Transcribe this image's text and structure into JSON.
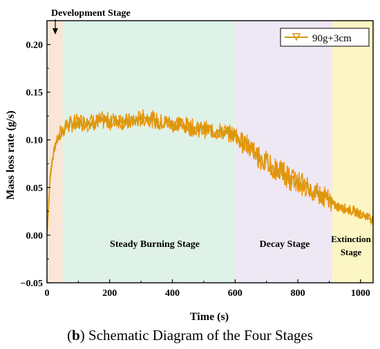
{
  "caption": {
    "prefix_open": "(",
    "letter": "b",
    "prefix_close": ")",
    "text": " Schematic Diagram of the Four Stages"
  },
  "colors": {
    "development": "#fbe5d6",
    "steady": "#dff2e8",
    "decay": "#eee8f4",
    "extinction": "#fbf6c3",
    "series": "#d9980e",
    "series_bright": "#f39200"
  },
  "chart_data": {
    "type": "line",
    "title": "",
    "xlabel": "Time (s)",
    "ylabel": "Mass loss rate (g/s)",
    "xlim": [
      0,
      1040
    ],
    "ylim": [
      -0.05,
      0.225
    ],
    "xticks": [
      0,
      200,
      400,
      600,
      800,
      1000
    ],
    "yticks": [
      -0.05,
      0.0,
      0.05,
      0.1,
      0.15,
      0.2
    ],
    "ytick_labels": [
      "−0.05",
      "0.00",
      "0.05",
      "0.10",
      "0.15",
      "0.20"
    ],
    "grid": false,
    "legend_position": "top-right",
    "stages": [
      {
        "name": "Development Stage",
        "start": 0,
        "end": 50,
        "color_key": "development"
      },
      {
        "name": "Steady Burning Stage",
        "start": 50,
        "end": 600,
        "color_key": "steady"
      },
      {
        "name": "Decay Stage",
        "start": 600,
        "end": 910,
        "color_key": "decay"
      },
      {
        "name": "Extinction Stage",
        "start": 910,
        "end": 1040,
        "color_key": "extinction"
      }
    ],
    "stage_labels": {
      "development": "Development Stage",
      "steady": "Steady Burning Stage",
      "decay": "Decay Stage",
      "extinction_line1": "Extinction",
      "extinction_line2": "Stage"
    },
    "series": [
      {
        "name": "90g+3cm",
        "x": [
          0,
          5,
          10,
          15,
          20,
          25,
          30,
          40,
          50,
          60,
          80,
          100,
          120,
          150,
          180,
          200,
          230,
          250,
          280,
          300,
          320,
          340,
          360,
          380,
          400,
          420,
          440,
          460,
          480,
          500,
          520,
          540,
          560,
          580,
          600,
          620,
          640,
          660,
          680,
          700,
          720,
          740,
          750,
          760,
          780,
          800,
          820,
          840,
          860,
          880,
          900,
          910,
          920,
          940,
          960,
          980,
          1000,
          1020,
          1040
        ],
        "y": [
          0.0,
          0.03,
          0.06,
          0.075,
          0.085,
          0.092,
          0.098,
          0.105,
          0.11,
          0.114,
          0.117,
          0.118,
          0.119,
          0.118,
          0.12,
          0.119,
          0.121,
          0.118,
          0.12,
          0.122,
          0.124,
          0.121,
          0.118,
          0.119,
          0.116,
          0.117,
          0.115,
          0.113,
          0.112,
          0.111,
          0.11,
          0.109,
          0.108,
          0.107,
          0.104,
          0.1,
          0.093,
          0.087,
          0.08,
          0.076,
          0.07,
          0.067,
          0.07,
          0.062,
          0.058,
          0.056,
          0.052,
          0.048,
          0.044,
          0.04,
          0.037,
          0.033,
          0.031,
          0.029,
          0.027,
          0.025,
          0.022,
          0.02,
          0.016
        ]
      }
    ]
  }
}
